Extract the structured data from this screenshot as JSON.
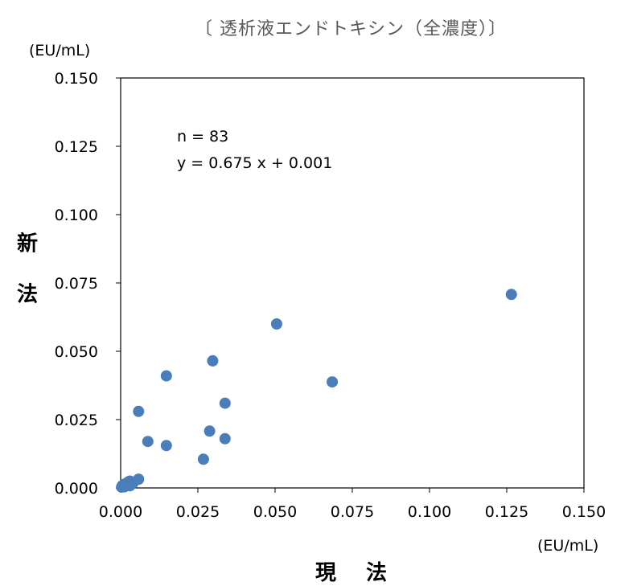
{
  "chart_data": {
    "type": "scatter",
    "title": "〔 透析液エンドトキシン（全濃度）〕",
    "xlabel": "現 法",
    "ylabel": "新 法",
    "x_unit": "(EU/mL)",
    "y_unit": "(EU/mL)",
    "xlim": [
      0,
      0.15
    ],
    "ylim": [
      0,
      0.15
    ],
    "x_ticks": [
      "0.000",
      "0.025",
      "0.050",
      "0.075",
      "0.100",
      "0.125",
      "0.150"
    ],
    "y_ticks": [
      "0.000",
      "0.025",
      "0.050",
      "0.075",
      "0.100",
      "0.125",
      "0.150"
    ],
    "grid": false,
    "point_color": "#4a7ebb",
    "annotations": [
      "n = 83",
      "y = 0.675 x + 0.001"
    ],
    "points": [
      {
        "x": 0.0003,
        "y": 0.0003
      },
      {
        "x": 0.0005,
        "y": 0.0008
      },
      {
        "x": 0.0008,
        "y": 0.0005
      },
      {
        "x": 0.001,
        "y": 0.0012
      },
      {
        "x": 0.0012,
        "y": 0.0004
      },
      {
        "x": 0.0015,
        "y": 0.0015
      },
      {
        "x": 0.002,
        "y": 0.001
      },
      {
        "x": 0.0025,
        "y": 0.0022
      },
      {
        "x": 0.003,
        "y": 0.0008
      },
      {
        "x": 0.003,
        "y": 0.0025
      },
      {
        "x": 0.004,
        "y": 0.0018
      },
      {
        "x": 0.0058,
        "y": 0.0032
      },
      {
        "x": 0.0058,
        "y": 0.028
      },
      {
        "x": 0.0088,
        "y": 0.017
      },
      {
        "x": 0.0148,
        "y": 0.041
      },
      {
        "x": 0.0148,
        "y": 0.0155
      },
      {
        "x": 0.0268,
        "y": 0.0105
      },
      {
        "x": 0.0288,
        "y": 0.0208
      },
      {
        "x": 0.0298,
        "y": 0.0465
      },
      {
        "x": 0.0338,
        "y": 0.031
      },
      {
        "x": 0.0338,
        "y": 0.018
      },
      {
        "x": 0.0505,
        "y": 0.06
      },
      {
        "x": 0.0685,
        "y": 0.0388
      },
      {
        "x": 0.1265,
        "y": 0.0708
      }
    ]
  }
}
